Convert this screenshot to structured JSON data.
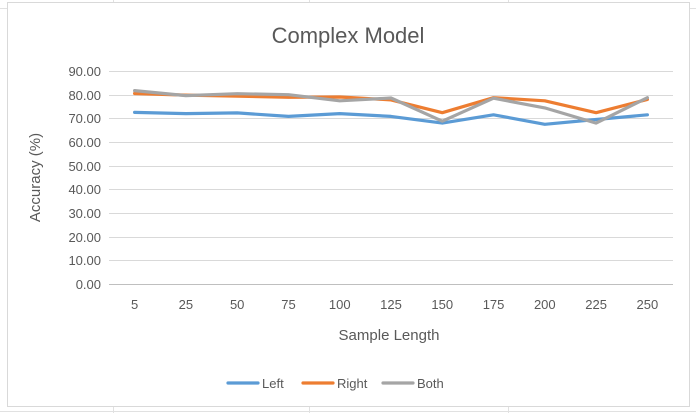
{
  "chart_data": {
    "type": "line",
    "title": "Complex Model",
    "xlabel": "Sample Length",
    "ylabel": "Accuracy (%)",
    "categories": [
      "5",
      "25",
      "50",
      "75",
      "100",
      "125",
      "150",
      "175",
      "200",
      "225",
      "250"
    ],
    "y_ticks": [
      "0.00",
      "10.00",
      "20.00",
      "30.00",
      "40.00",
      "50.00",
      "60.00",
      "70.00",
      "80.00",
      "90.00"
    ],
    "ylim": [
      0,
      90
    ],
    "grid": true,
    "legend_position": "bottom",
    "series": [
      {
        "name": "Left",
        "color": "#5b9bd5",
        "values": [
          72.5,
          72.0,
          72.3,
          70.8,
          72.0,
          70.8,
          68.0,
          71.5,
          67.5,
          69.5,
          71.5
        ]
      },
      {
        "name": "Right",
        "color": "#ed7d31",
        "values": [
          80.5,
          79.8,
          79.4,
          78.9,
          79.0,
          77.8,
          72.4,
          78.7,
          77.4,
          72.4,
          78.0
        ]
      },
      {
        "name": "Both",
        "color": "#a5a5a5",
        "values": [
          81.7,
          79.6,
          80.4,
          80.0,
          77.4,
          78.6,
          68.8,
          78.5,
          74.4,
          68.0,
          78.7
        ]
      }
    ]
  }
}
